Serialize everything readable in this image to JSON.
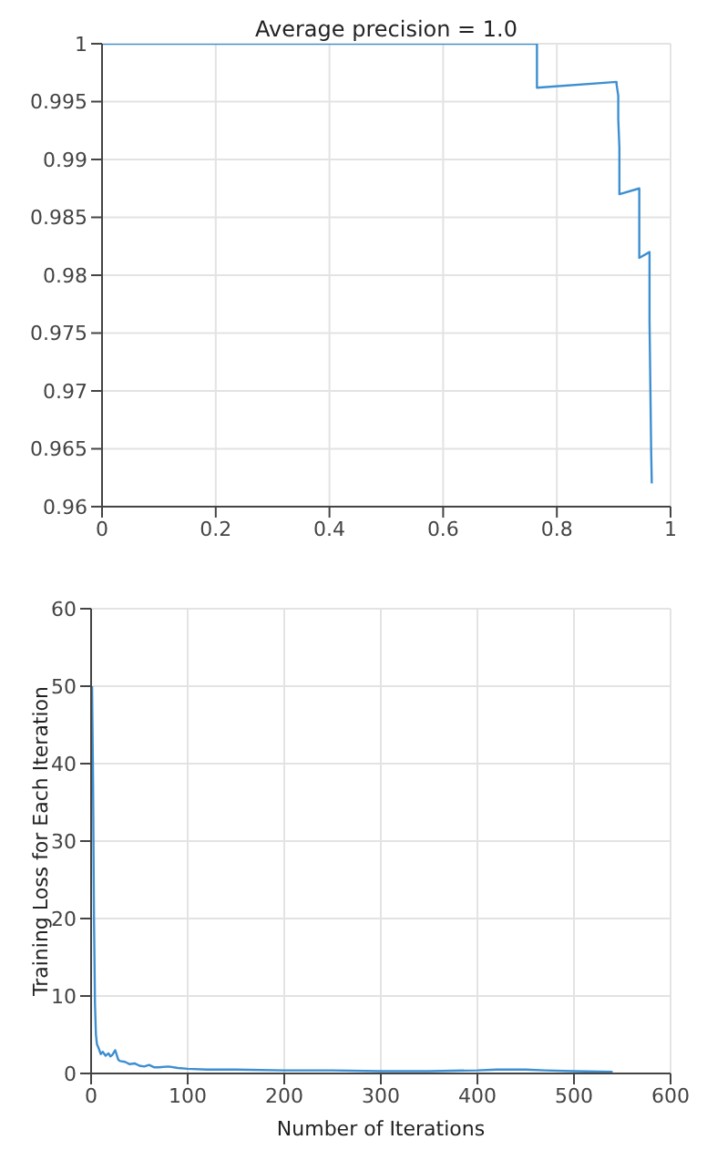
{
  "chart_data": [
    {
      "type": "line",
      "title": "Average precision = 1.0",
      "xlim": [
        0,
        1
      ],
      "ylim": [
        0.96,
        1
      ],
      "xticks": [
        0,
        0.2,
        0.4,
        0.6,
        0.8,
        1
      ],
      "yticks": [
        0.96,
        0.965,
        0.97,
        0.975,
        0.98,
        0.985,
        0.99,
        0.995,
        1
      ],
      "grid": true,
      "marker": "none",
      "series": [
        {
          "color": "#3d8fd1",
          "x": [
            0,
            0.765,
            0.765,
            0.905,
            0.905,
            0.908,
            0.908,
            0.91,
            0.91,
            0.945,
            0.945,
            0.963,
            0.963,
            0.966,
            0.966,
            0.967
          ],
          "values": [
            1,
            1,
            0.9962,
            0.9967,
            0.9965,
            0.9955,
            0.9935,
            0.991,
            0.987,
            0.9875,
            0.9815,
            0.982,
            0.976,
            0.9645,
            0.9645,
            0.962
          ]
        }
      ]
    },
    {
      "type": "line",
      "xlabel": "Number of Iterations",
      "ylabel": "Training Loss for Each Iteration",
      "xlim": [
        0,
        600
      ],
      "ylim": [
        0,
        60
      ],
      "xticks": [
        0,
        100,
        200,
        300,
        400,
        500,
        600
      ],
      "yticks": [
        0,
        10,
        20,
        30,
        40,
        50,
        60
      ],
      "grid": true,
      "marker": "none",
      "series": [
        {
          "color": "#3d8fd1",
          "x": [
            1,
            2,
            3,
            4,
            5,
            6,
            8,
            10,
            12,
            15,
            18,
            20,
            22,
            25,
            28,
            30,
            35,
            40,
            45,
            50,
            55,
            60,
            65,
            70,
            80,
            90,
            100,
            120,
            150,
            200,
            250,
            300,
            350,
            400,
            420,
            450,
            470,
            500,
            540
          ],
          "values": [
            50,
            38,
            20,
            9,
            5,
            3.8,
            3.2,
            2.5,
            2.8,
            2.3,
            2.6,
            2.2,
            2.4,
            3,
            1.8,
            1.6,
            1.5,
            1.2,
            1.3,
            1.0,
            0.9,
            1.1,
            0.8,
            0.8,
            0.9,
            0.7,
            0.6,
            0.5,
            0.5,
            0.4,
            0.4,
            0.3,
            0.3,
            0.4,
            0.5,
            0.5,
            0.4,
            0.3,
            0.2
          ]
        }
      ]
    }
  ]
}
